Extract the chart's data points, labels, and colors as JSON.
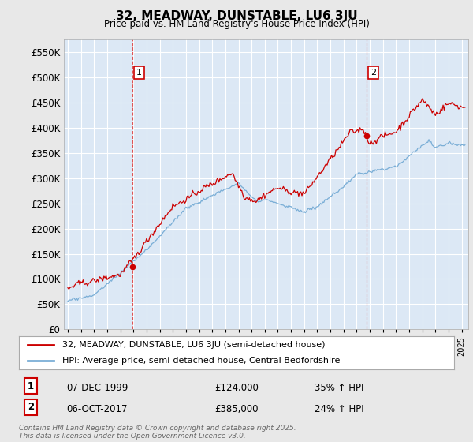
{
  "title": "32, MEADWAY, DUNSTABLE, LU6 3JU",
  "subtitle": "Price paid vs. HM Land Registry's House Price Index (HPI)",
  "legend_line1": "32, MEADWAY, DUNSTABLE, LU6 3JU (semi-detached house)",
  "legend_line2": "HPI: Average price, semi-detached house, Central Bedfordshire",
  "annotation1_label": "1",
  "annotation1_date": "07-DEC-1999",
  "annotation1_price": "£124,000",
  "annotation1_hpi": "35% ↑ HPI",
  "annotation1_year": 1999.92,
  "annotation1_value": 124000,
  "annotation2_label": "2",
  "annotation2_date": "06-OCT-2017",
  "annotation2_price": "£385,000",
  "annotation2_hpi": "24% ↑ HPI",
  "annotation2_year": 2017.75,
  "annotation2_value": 385000,
  "footer": "Contains HM Land Registry data © Crown copyright and database right 2025.\nThis data is licensed under the Open Government Licence v3.0.",
  "price_color": "#cc0000",
  "hpi_color": "#7aaed6",
  "vline_color": "#dd4444",
  "background_color": "#e8e8e8",
  "plot_background": "#dce8f5",
  "ylim": [
    0,
    575000
  ],
  "yticks": [
    0,
    50000,
    100000,
    150000,
    200000,
    250000,
    300000,
    350000,
    400000,
    450000,
    500000,
    550000
  ],
  "xlim_start": 1994.7,
  "xlim_end": 2025.5
}
